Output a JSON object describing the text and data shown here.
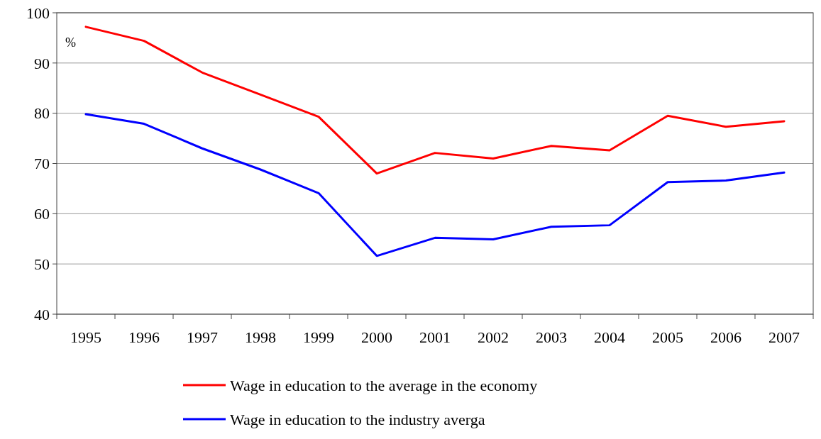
{
  "chart_data": {
    "type": "line",
    "ylabel": "%",
    "categories": [
      "1995",
      "1996",
      "1997",
      "1998",
      "1999",
      "2000",
      "2001",
      "2002",
      "2003",
      "2004",
      "2005",
      "2006",
      "2007"
    ],
    "series": [
      {
        "name": "Wage in education to the average in the economy",
        "color": "#ff0000",
        "values": [
          97.2,
          94.4,
          88.1,
          83.7,
          79.3,
          68,
          72.1,
          71,
          73.5,
          72.6,
          79.5,
          77.3,
          78.4
        ]
      },
      {
        "name": "Wage in education to the industry averga",
        "color": "#0000ff",
        "values": [
          79.8,
          77.9,
          73,
          68.8,
          64.1,
          51.6,
          55.2,
          54.9,
          57.4,
          57.7,
          66.3,
          66.6,
          68.2
        ]
      }
    ],
    "ylim": [
      40,
      100
    ],
    "yticks": [
      40,
      50,
      60,
      70,
      80,
      90,
      100
    ],
    "grid": "y",
    "legend": "bottom",
    "marker": "none",
    "line_style": "solid"
  }
}
